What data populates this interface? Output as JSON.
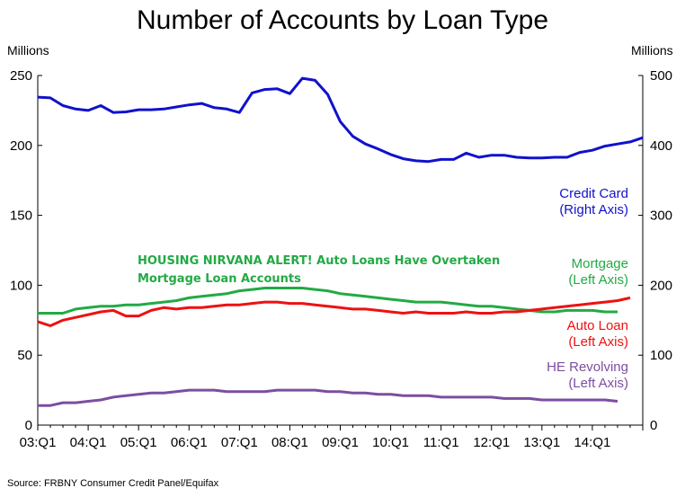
{
  "chart_data": {
    "type": "line",
    "title": "Number of Accounts by Loan Type",
    "left_axis_label": "Millions",
    "right_axis_label": "Millions",
    "left_ylim": [
      0,
      250
    ],
    "right_ylim": [
      0,
      500
    ],
    "left_ticks": [
      "0",
      "50",
      "100",
      "150",
      "200",
      "250"
    ],
    "right_ticks": [
      "0",
      "100",
      "200",
      "300",
      "400",
      "500"
    ],
    "x_ticks": [
      "03:Q1",
      "04:Q1",
      "05:Q1",
      "06:Q1",
      "07:Q1",
      "08:Q1",
      "09:Q1",
      "10:Q1",
      "11:Q1",
      "12:Q1",
      "13:Q1",
      "14:Q1"
    ],
    "annotation": [
      "HOUSING NIRVANA ALERT! Auto Loans Have Overtaken",
      "Mortgage Loan Accounts"
    ],
    "annotation_color": "#22aa44",
    "source": "Source: FRBNY Consumer Credit Panel/Equifax",
    "series": [
      {
        "name": "Credit Card",
        "label": [
          "Credit Card",
          "(Right Axis)"
        ],
        "axis": "right",
        "color": "#1111cc",
        "values": [
          469,
          468,
          457,
          452,
          450,
          457,
          447,
          448,
          451,
          451,
          452,
          455,
          458,
          460,
          454,
          452,
          447,
          475,
          480,
          481,
          474,
          496,
          493,
          473,
          434,
          413,
          402,
          395,
          387,
          381,
          378,
          377,
          380,
          380,
          389,
          383,
          386,
          386,
          383,
          382,
          382,
          383,
          383,
          390,
          393,
          399,
          402,
          405,
          411
        ]
      },
      {
        "name": "Mortgage",
        "label": [
          "Mortgage",
          "(Left Axis)"
        ],
        "axis": "left",
        "color": "#22aa44",
        "values": [
          80,
          80,
          80,
          83,
          84,
          85,
          85,
          86,
          86,
          87,
          88,
          89,
          91,
          92,
          93,
          94,
          96,
          97,
          98,
          98,
          98,
          98,
          97,
          96,
          94,
          93,
          92,
          91,
          90,
          89,
          88,
          88,
          88,
          87,
          86,
          85,
          85,
          84,
          83,
          82,
          81,
          81,
          82,
          82,
          82,
          81,
          81
        ]
      },
      {
        "name": "Auto Loan",
        "label": [
          "Auto Loan",
          "(Left Axis)"
        ],
        "axis": "left",
        "color": "#ee1111",
        "values": [
          74,
          71,
          75,
          77,
          79,
          81,
          82,
          78,
          78,
          82,
          84,
          83,
          84,
          84,
          85,
          86,
          86,
          87,
          88,
          88,
          87,
          87,
          86,
          85,
          84,
          83,
          83,
          82,
          81,
          80,
          81,
          80,
          80,
          80,
          81,
          80,
          80,
          81,
          81,
          82,
          83,
          84,
          85,
          86,
          87,
          88,
          89,
          91
        ]
      },
      {
        "name": "HE Revolving",
        "label": [
          "HE Revolving",
          "(Left Axis)"
        ],
        "axis": "left",
        "color": "#7b4ea0",
        "values": [
          14,
          14,
          16,
          16,
          17,
          18,
          20,
          21,
          22,
          23,
          23,
          24,
          25,
          25,
          25,
          24,
          24,
          24,
          24,
          25,
          25,
          25,
          25,
          24,
          24,
          23,
          23,
          22,
          22,
          21,
          21,
          21,
          20,
          20,
          20,
          20,
          20,
          19,
          19,
          19,
          18,
          18,
          18,
          18,
          18,
          18,
          17
        ]
      }
    ]
  }
}
